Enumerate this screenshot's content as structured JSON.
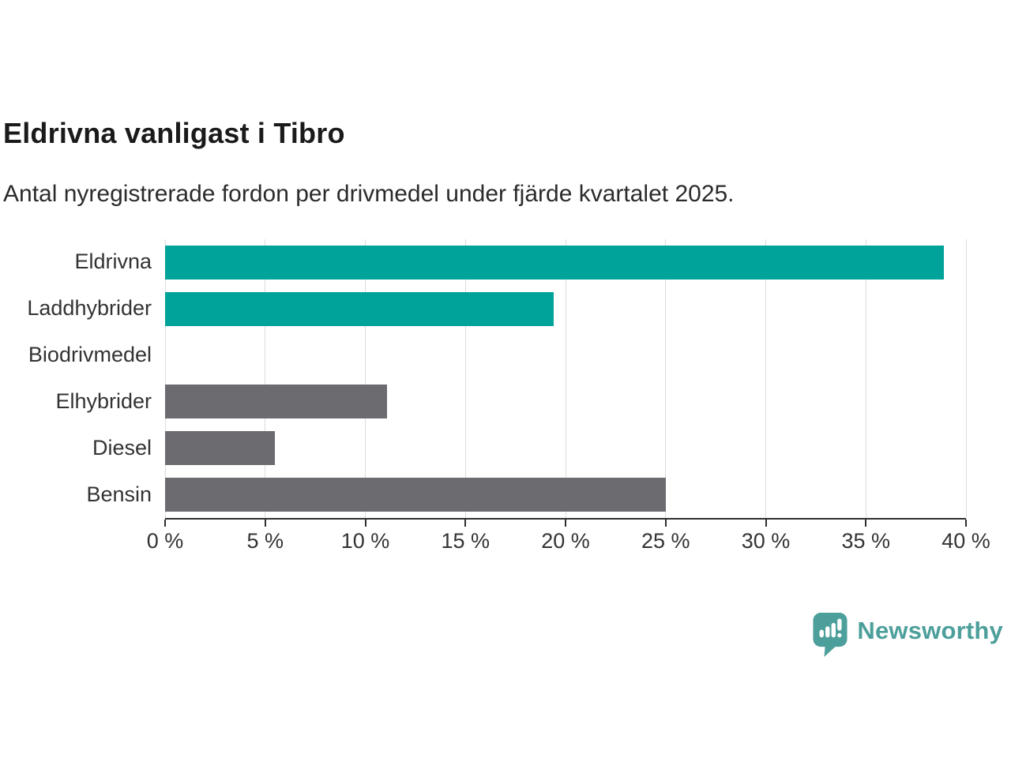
{
  "page": {
    "title": "Eldrivna vanligast i Tibro",
    "subtitle": "Antal nyregistrerade fordon per drivmedel under fjärde kvartalet 2025.",
    "background": "#ffffff"
  },
  "branding": {
    "logo_text": "Newsworthy",
    "logo_color": "#4d9f9b",
    "logo_icon": "speech-bubble-bar-chart-icon"
  },
  "colors": {
    "accent_teal": "#00a399",
    "bar_gray": "#6b6b70",
    "gridline": "#dcdcdc",
    "axis": "#2f2f2f",
    "text": "#333333"
  },
  "chart_data": {
    "type": "bar",
    "orientation": "horizontal",
    "title": "Eldrivna vanligast i Tibro",
    "subtitle": "Antal nyregistrerade fordon per drivmedel under fjärde kvartalet 2025.",
    "categories": [
      "Eldrivna",
      "Laddhybrider",
      "Biodrivmedel",
      "Elhybrider",
      "Diesel",
      "Bensin"
    ],
    "values": [
      38.9,
      19.4,
      0,
      11.1,
      5.5,
      25
    ],
    "unit": "%",
    "bar_colors": [
      "#00a399",
      "#00a399",
      "#6b6b70",
      "#6b6b70",
      "#6b6b70",
      "#6b6b70"
    ],
    "xlabel": "",
    "ylabel": "",
    "xlim": [
      0,
      40
    ],
    "x_ticks": [
      0,
      5,
      10,
      15,
      20,
      25,
      30,
      35,
      40
    ],
    "x_tick_labels": [
      "0 %",
      "5 %",
      "10 %",
      "15 %",
      "20 %",
      "25 %",
      "30 %",
      "35 %",
      "40 %"
    ],
    "grid": "vertical-gridlines-on",
    "legend": "none"
  }
}
